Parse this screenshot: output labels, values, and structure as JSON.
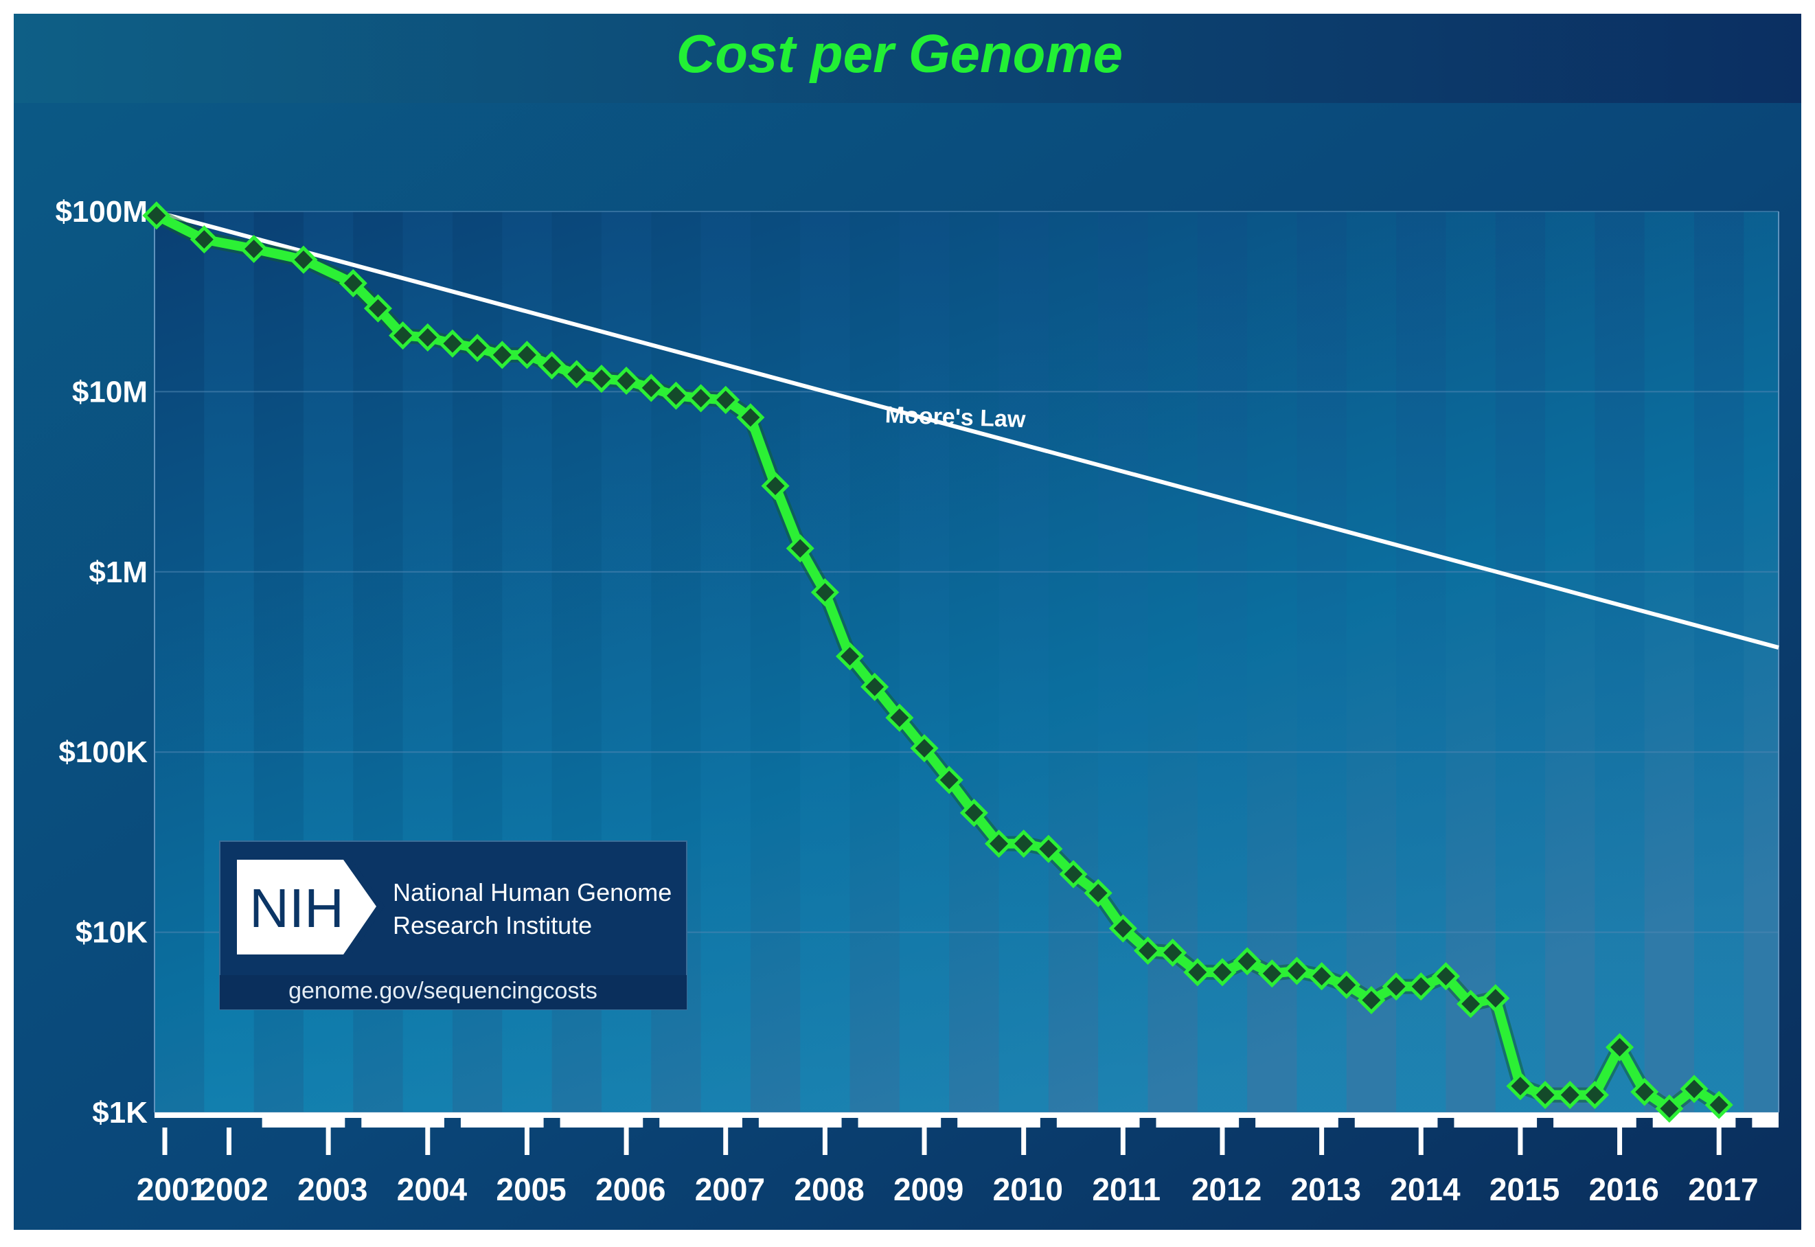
{
  "chart_data": {
    "type": "line",
    "title": "Cost per Genome",
    "y_scale": "log10",
    "ylim": [
      1000,
      100000000
    ],
    "y_ticks": [
      {
        "value": 100000000,
        "label": "$100M"
      },
      {
        "value": 10000000,
        "label": "$10M"
      },
      {
        "value": 1000000,
        "label": "$1M"
      },
      {
        "value": 100000,
        "label": "$100K"
      },
      {
        "value": 10000,
        "label": "$10K"
      },
      {
        "value": 1000,
        "label": "$1K"
      }
    ],
    "xlim": [
      2001.5,
      2017.85
    ],
    "x_ticks": [
      {
        "value": 2001.5,
        "label": "2001"
      },
      {
        "value": 2002.25,
        "label": "2002"
      },
      {
        "value": 2003.25,
        "label": "2003"
      },
      {
        "value": 2004.25,
        "label": "2004"
      },
      {
        "value": 2005.25,
        "label": "2005"
      },
      {
        "value": 2006.25,
        "label": "2006"
      },
      {
        "value": 2007.25,
        "label": "2007"
      },
      {
        "value": 2008.25,
        "label": "2008"
      },
      {
        "value": 2009.25,
        "label": "2009"
      },
      {
        "value": 2010.25,
        "label": "2010"
      },
      {
        "value": 2011.25,
        "label": "2011"
      },
      {
        "value": 2012.25,
        "label": "2012"
      },
      {
        "value": 2013.25,
        "label": "2013"
      },
      {
        "value": 2014.25,
        "label": "2014"
      },
      {
        "value": 2015.25,
        "label": "2015"
      },
      {
        "value": 2016.25,
        "label": "2016"
      },
      {
        "value": 2017.25,
        "label": "2017"
      }
    ],
    "series": [
      {
        "name": "Cost per Genome",
        "color": "#2cf035",
        "points": [
          [
            2001.52,
            95000000
          ],
          [
            2002.0,
            70000000
          ],
          [
            2002.5,
            62000000
          ],
          [
            2003.0,
            54000000
          ],
          [
            2003.5,
            40000000
          ],
          [
            2003.75,
            29000000
          ],
          [
            2004.0,
            20500000
          ],
          [
            2004.25,
            20000000
          ],
          [
            2004.5,
            18500000
          ],
          [
            2004.75,
            17500000
          ],
          [
            2005.0,
            16000000
          ],
          [
            2005.25,
            16000000
          ],
          [
            2005.5,
            14000000
          ],
          [
            2005.75,
            12500000
          ],
          [
            2006.0,
            11800000
          ],
          [
            2006.25,
            11500000
          ],
          [
            2006.5,
            10500000
          ],
          [
            2006.75,
            9500000
          ],
          [
            2007.0,
            9200000
          ],
          [
            2007.25,
            9000000
          ],
          [
            2007.5,
            7200000
          ],
          [
            2007.75,
            3000000
          ],
          [
            2008.0,
            1350000
          ],
          [
            2008.25,
            770000
          ],
          [
            2008.5,
            340000
          ],
          [
            2008.75,
            230000
          ],
          [
            2009.0,
            155000
          ],
          [
            2009.25,
            105000
          ],
          [
            2009.5,
            70000
          ],
          [
            2009.75,
            46000
          ],
          [
            2010.0,
            31000
          ],
          [
            2010.25,
            31000
          ],
          [
            2010.5,
            29000
          ],
          [
            2010.75,
            21000
          ],
          [
            2011.0,
            16500
          ],
          [
            2011.25,
            10500
          ],
          [
            2011.5,
            7900
          ],
          [
            2011.75,
            7700
          ],
          [
            2012.0,
            6000
          ],
          [
            2012.25,
            6000
          ],
          [
            2012.5,
            6900
          ],
          [
            2012.75,
            5900
          ],
          [
            2013.0,
            6100
          ],
          [
            2013.25,
            5700
          ],
          [
            2013.5,
            5100
          ],
          [
            2013.75,
            4200
          ],
          [
            2014.0,
            5000
          ],
          [
            2014.25,
            5000
          ],
          [
            2014.5,
            5700
          ],
          [
            2014.75,
            4000
          ],
          [
            2015.0,
            4300
          ],
          [
            2015.25,
            1400
          ],
          [
            2015.5,
            1250
          ],
          [
            2015.75,
            1250
          ],
          [
            2016.0,
            1250
          ],
          [
            2016.25,
            2300
          ],
          [
            2016.5,
            1300
          ],
          [
            2016.75,
            1050
          ],
          [
            2017.0,
            1350
          ],
          [
            2017.25,
            1100
          ]
        ]
      },
      {
        "name": "Moore's Law",
        "color": "#ffffff",
        "points": [
          [
            2001.5,
            100000000
          ],
          [
            2017.85,
            380000
          ]
        ]
      }
    ],
    "annotations": [
      {
        "text": "Moore's Law",
        "x": 2010.0,
        "y": 8500000
      }
    ]
  },
  "logo": {
    "mark": "NIH",
    "line1": "National Human Genome",
    "line2": "Research Institute",
    "url": "genome.gov/sequencingcosts"
  },
  "colors": {
    "title": "#22f035",
    "line": "#2cf035",
    "marker": "#144a2a",
    "moore": "#ffffff",
    "bg_top": "#0a3e6a",
    "bg_bottom": "#0a4a7e"
  }
}
